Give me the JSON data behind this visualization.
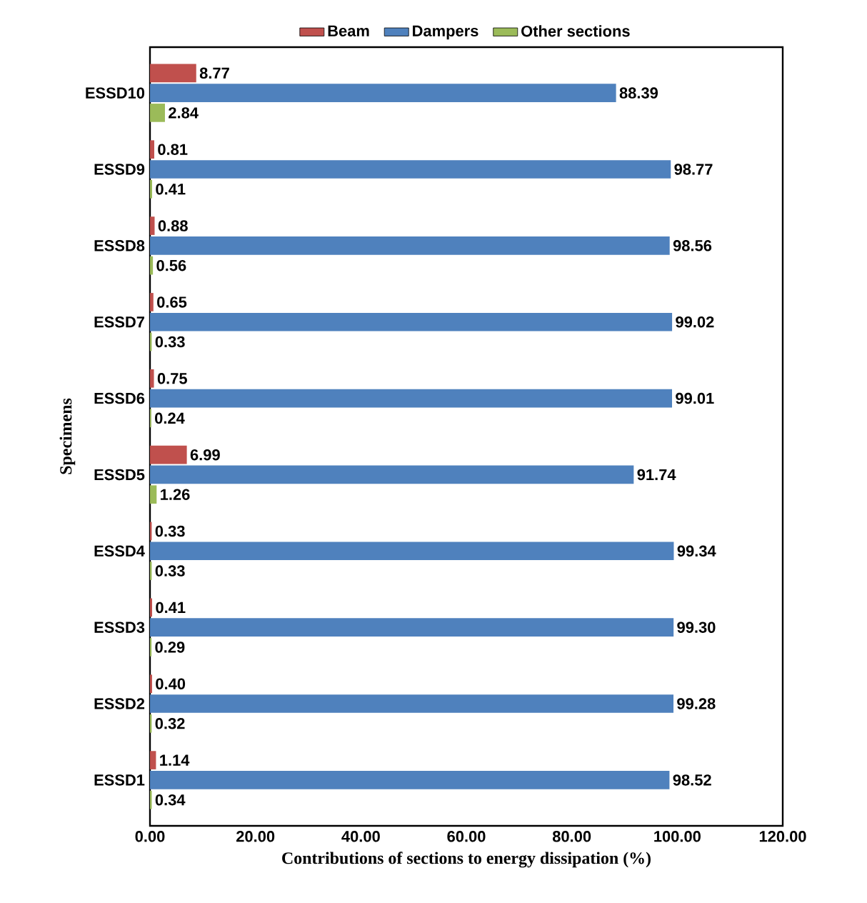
{
  "chart_data": {
    "type": "bar",
    "orientation": "horizontal",
    "xlabel": "Contributions of sections to energy dissipation (%)",
    "ylabel": "Specimens",
    "categories": [
      "ESSD10",
      "ESSD9",
      "ESSD8",
      "ESSD7",
      "ESSD6",
      "ESSD5",
      "ESSD4",
      "ESSD3",
      "ESSD2",
      "ESSD1"
    ],
    "series": [
      {
        "name": "Beam",
        "color": "#c0504d",
        "values": [
          8.77,
          0.81,
          0.88,
          0.65,
          0.75,
          6.99,
          0.33,
          0.41,
          0.4,
          1.14
        ],
        "value_labels": [
          "8.77",
          "0.81",
          "0.88",
          "0.65",
          "0.75",
          "6.99",
          "0.33",
          "0.41",
          "0.40",
          "1.14"
        ]
      },
      {
        "name": "Dampers",
        "color": "#4f81bd",
        "values": [
          88.39,
          98.77,
          98.56,
          99.02,
          99.01,
          91.74,
          99.34,
          99.3,
          99.28,
          98.52
        ],
        "value_labels": [
          "88.39",
          "98.77",
          "98.56",
          "99.02",
          "99.01",
          "91.74",
          "99.34",
          "99.30",
          "99.28",
          "98.52"
        ]
      },
      {
        "name": "Other sections",
        "color": "#9bbb59",
        "values": [
          2.84,
          0.41,
          0.56,
          0.33,
          0.24,
          1.26,
          0.33,
          0.29,
          0.32,
          0.34
        ],
        "value_labels": [
          "2.84",
          "0.41",
          "0.56",
          "0.33",
          "0.24",
          "1.26",
          "0.33",
          "0.29",
          "0.32",
          "0.34"
        ]
      }
    ],
    "xlim": [
      0,
      120
    ],
    "xticks": [
      {
        "value": 0,
        "label": "0.00"
      },
      {
        "value": 20,
        "label": "20.00"
      },
      {
        "value": 40,
        "label": "40.00"
      },
      {
        "value": 60,
        "label": "60.00"
      },
      {
        "value": 80,
        "label": "80.00"
      },
      {
        "value": 100,
        "label": "100.00"
      },
      {
        "value": 120,
        "label": "120.00"
      }
    ],
    "legend": "top"
  }
}
